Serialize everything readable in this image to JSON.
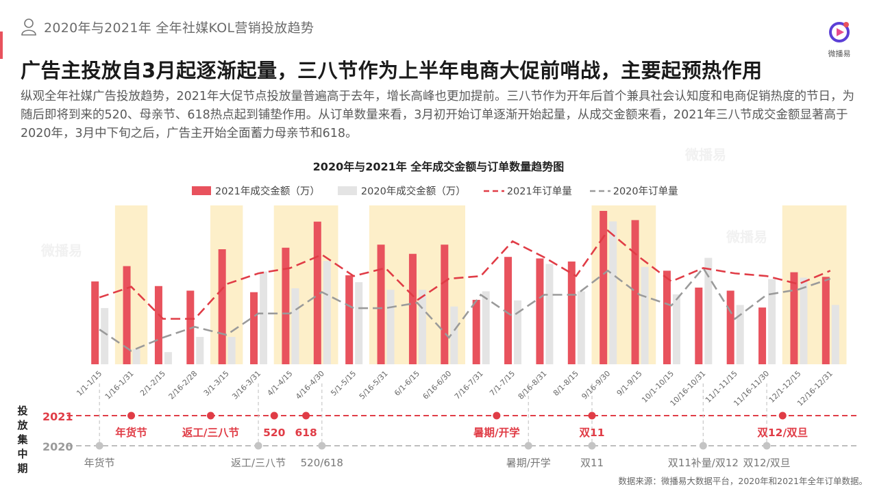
{
  "header": {
    "section_title": "2020年与2021年 全年社媒KOL营销投放趋势",
    "logo_text": "微播易"
  },
  "headline": "广告主投放自3月起逐渐起量，三八节作为上半年电商大促前哨战，主要起预热作用",
  "summary": "纵观全年社媒广告投放趋势，2021年大促节点投放量普遍高于去年，增长高峰也更加提前。三八节作为开年后首个兼具社会认知度和电商促销热度的节日，为随后即将到来的520、母亲节、618热点起到铺垫作用。从订单数量来看，3月初开始订单逐渐开始起量，从成交金额来看，2021年三八节成交金额显著高于2020年，3月中下旬之后，广告主开始全面蓄力母亲节和618。",
  "colors": {
    "bar2021": "#e8525d",
    "bar2020": "#e4e4e4",
    "line2021": "#e03c46",
    "line2020": "#9a9a9a",
    "highlight": "#fdefc9",
    "accent": "#e8525d"
  },
  "chart_data": {
    "type": "bar",
    "title": "2020年与2021年  全年成交金额与订单数量趋势图",
    "categories": [
      "1/1-1/15",
      "1/16-1/31",
      "2/1-2/15",
      "2/16-2/28",
      "3/1-3/15",
      "3/16-3/31",
      "4/1-4/15",
      "4/16-4/30",
      "5/1-5/15",
      "5/16-5/31",
      "6/1-6/15",
      "6/16-6/30",
      "7/16-7/31",
      "7/1-7/15",
      "8/16-8/31",
      "8/1-8/15",
      "9/16-9/30",
      "9/1-9/15",
      "10/1-10/15",
      "10/16-10/31",
      "11/1-11/15",
      "11/16-11/30",
      "12/1-12/15",
      "12/16-12/31"
    ],
    "highlight_categories": [
      "1/16-1/31",
      "3/1-3/15",
      "4/1-4/15",
      "4/16-4/30",
      "5/16-5/31",
      "6/1-6/15",
      "6/16-6/30",
      "9/16-9/30",
      "9/1-9/15",
      "12/1-12/15",
      "12/16-12/31"
    ],
    "series": [
      {
        "name": "2021年成交金额（万）",
        "kind": "bar",
        "values": [
          54,
          64,
          51,
          48,
          75,
          47,
          76,
          93,
          58,
          78,
          72,
          78,
          42,
          70,
          69,
          67,
          100,
          94,
          61,
          50,
          48,
          37,
          60,
          57
        ]
      },
      {
        "name": "2020年成交金额（万）",
        "kind": "bar",
        "values": [
          37,
          10,
          8,
          18,
          18,
          61,
          50,
          68,
          54,
          49,
          49,
          38,
          48,
          42,
          66,
          48,
          94,
          64,
          46,
          70,
          39,
          56,
          57,
          39
        ]
      },
      {
        "name": "2021年订单量",
        "kind": "line",
        "values": [
          25,
          29,
          17,
          17,
          30,
          34,
          36,
          41,
          33,
          36,
          24,
          32,
          33,
          46,
          40,
          33,
          50,
          40,
          31,
          36,
          34,
          33,
          30,
          35
        ]
      },
      {
        "name": "2020年订单量",
        "kind": "line",
        "values": [
          13,
          5,
          10,
          14,
          11,
          19,
          19,
          27,
          21,
          21,
          23,
          10,
          26,
          18,
          26,
          26,
          35,
          26,
          22,
          36,
          17,
          26,
          28,
          32
        ]
      }
    ],
    "timeline": {
      "row_title": "投放集中期",
      "row2021_label": "2021",
      "row2020_label": "2020",
      "events2021": [
        {
          "position": 1.5,
          "label": "年货节"
        },
        {
          "position": 4.0,
          "label": "返工/三八节"
        },
        {
          "position": 6.0,
          "label": "520"
        },
        {
          "position": 7.0,
          "label": "618"
        },
        {
          "position": 13.0,
          "label": "暑期/开学"
        },
        {
          "position": 16.0,
          "label": "双11"
        },
        {
          "position": 22.0,
          "label": "双12/双旦"
        }
      ],
      "events2020": [
        {
          "position": 0.5,
          "label": "年货节"
        },
        {
          "position": 5.5,
          "label": "返工/三八节"
        },
        {
          "position": 7.5,
          "label": "520/618"
        },
        {
          "position": 14.0,
          "label": "暑期/开学"
        },
        {
          "position": 16.0,
          "label": "双11"
        },
        {
          "position": 19.5,
          "label": "双11补量/双12"
        },
        {
          "position": 21.5,
          "label": "双12/双旦"
        }
      ]
    }
  },
  "source_note": "数据来源：微播易大数据平台，2020年和2021年全年订单数据。"
}
